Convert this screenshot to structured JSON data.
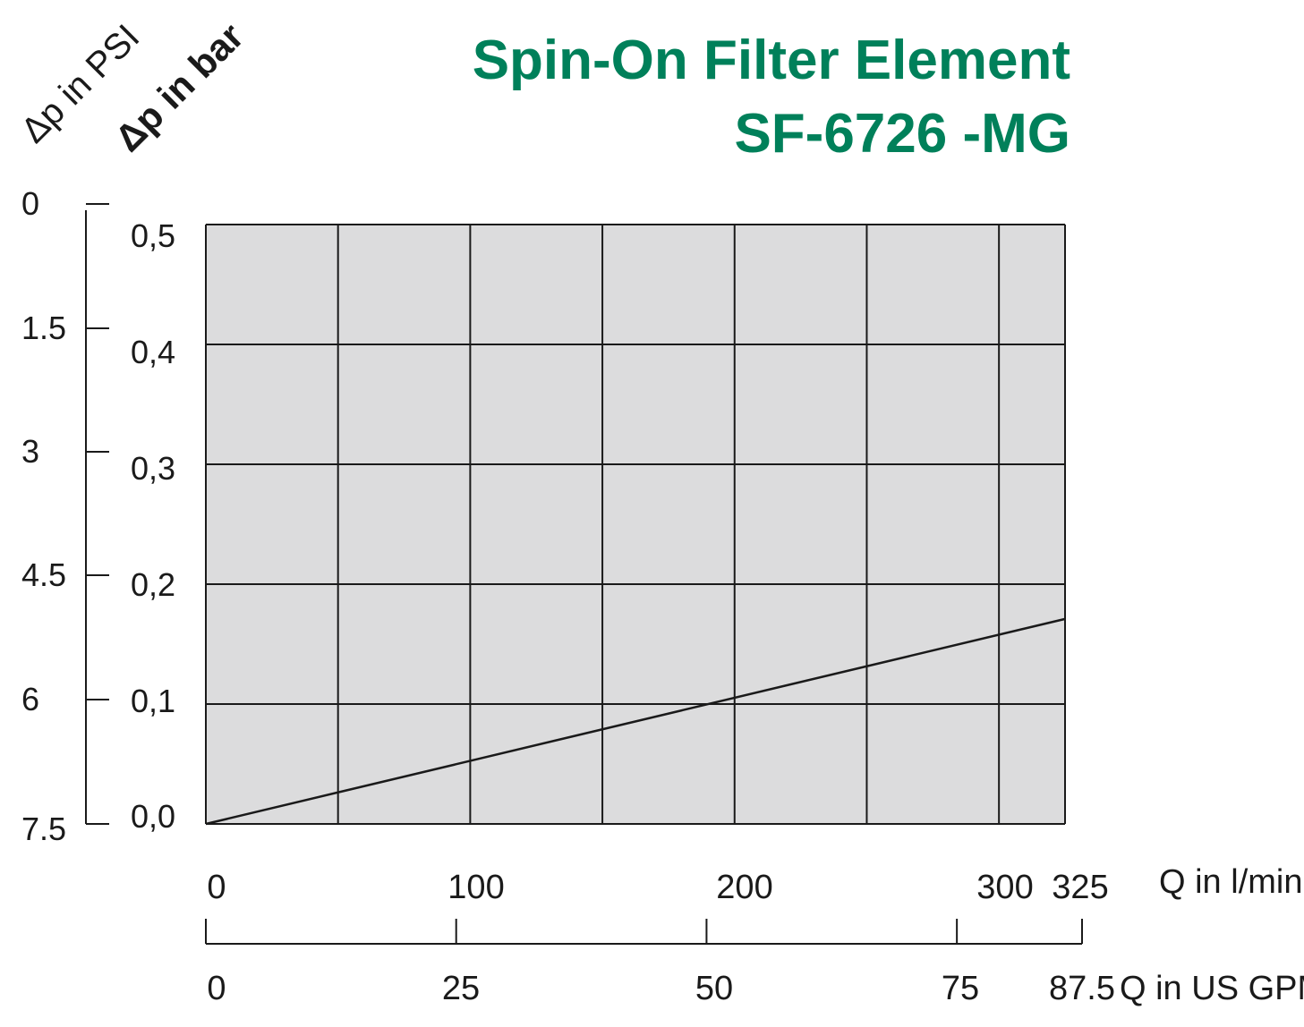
{
  "title_line1": "Spin-On Filter Element",
  "title_line2": "SF-6726 -MG",
  "colors": {
    "title": "#00805a",
    "plot_background": "#dcdcdd",
    "grid": "#1a1a1a",
    "curve": "#1a1a1a",
    "text": "#1a1a1a"
  },
  "chart_data": {
    "type": "line",
    "title": "Spin-On Filter Element SF-6726 -MG",
    "x_axis_primary": {
      "label": "Q in l/min",
      "range": [
        0,
        325
      ],
      "ticks": [
        0,
        100,
        200,
        300,
        325
      ],
      "tick_labels": [
        "0",
        "100",
        "200",
        "300",
        "325"
      ],
      "gridlines": [
        0,
        50,
        100,
        150,
        200,
        250,
        300,
        325
      ]
    },
    "x_axis_secondary": {
      "label": "Q in US GPM",
      "range": [
        0,
        87.5
      ],
      "ticks": [
        0,
        25,
        50,
        75,
        87.5
      ],
      "tick_labels": [
        "0",
        "25",
        "50",
        "75",
        "87.5"
      ]
    },
    "y_axis_primary": {
      "label": "Δp in bar",
      "range": [
        0,
        0.5
      ],
      "ticks": [
        0,
        0.1,
        0.2,
        0.3,
        0.4,
        0.5
      ],
      "tick_labels": [
        "0,0",
        "0,1",
        "0,2",
        "0,3",
        "0,4",
        "0,5"
      ]
    },
    "y_axis_secondary": {
      "label": "Δp in PSI",
      "range": [
        0,
        7.5
      ],
      "ticks": [
        0,
        1.5,
        3,
        4.5,
        6,
        7.5
      ],
      "tick_labels": [
        "0",
        "1.5",
        "3",
        "4.5",
        "6",
        "7.5"
      ]
    },
    "grid": true,
    "series": [
      {
        "x": [
          0,
          325
        ],
        "y": [
          0,
          0.171
        ]
      }
    ]
  }
}
